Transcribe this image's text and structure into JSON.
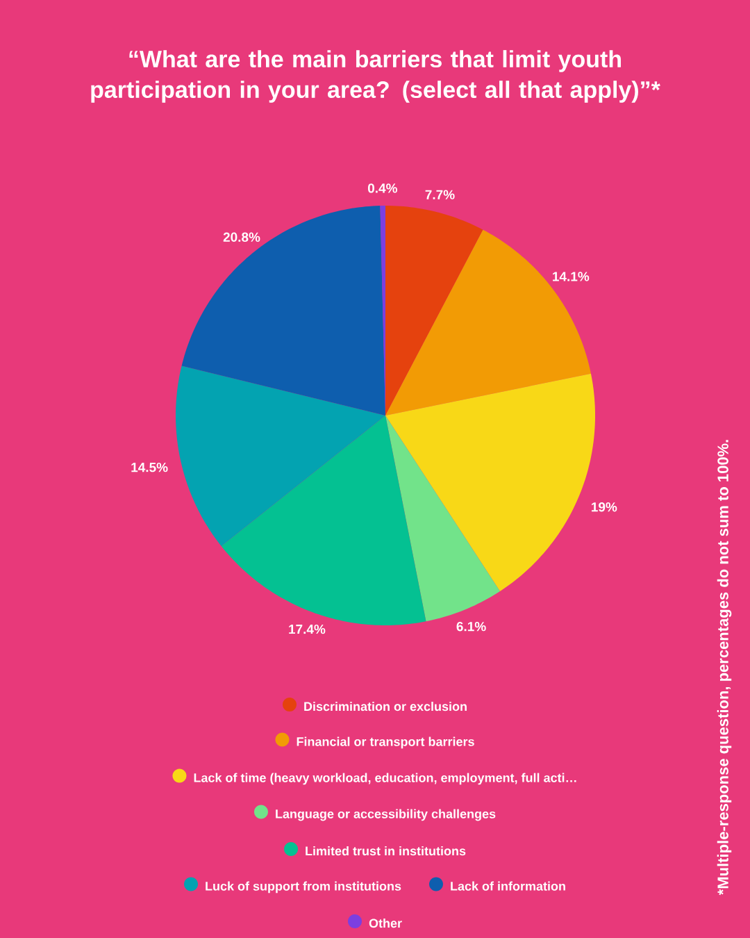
{
  "chart_data": {
    "type": "pie",
    "title": "“What are the main barriers that limit youth participation in your area? (select all that apply)”*",
    "categories": [
      "Discrimination or exclusion",
      "Financial or transport barriers",
      "Lack of time (heavy workload, education, employment, full acti…",
      "Language or accessibility challenges",
      "Limited trust in institutions",
      "Luck of support from institutions",
      "Lack of information",
      "Other"
    ],
    "values": [
      7.7,
      14.1,
      19,
      6.1,
      17.4,
      14.5,
      20.8,
      0.4
    ],
    "value_labels": [
      "7.7%",
      "14.1%",
      "19%",
      "6.1%",
      "17.4%",
      "14.5%",
      "20.8%",
      "0.4%"
    ],
    "colors": [
      "#e5420e",
      "#f29b05",
      "#f8d817",
      "#72e38a",
      "#04c192",
      "#03a3b1",
      "#0e5eae",
      "#7c3fe0"
    ],
    "legend": "bottom",
    "annotations": [
      "*Multiple-response question, percentages do not sum to 100%."
    ]
  }
}
